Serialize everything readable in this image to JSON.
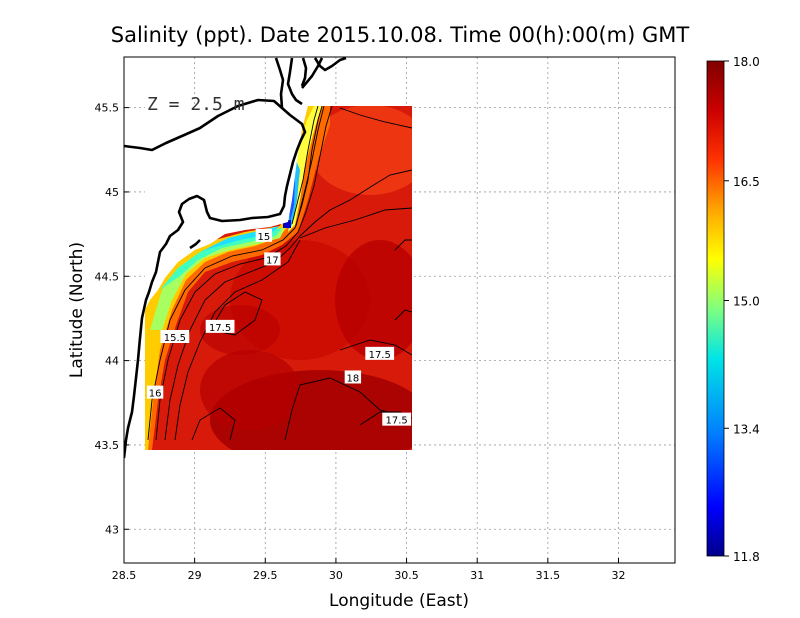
{
  "chart_data": {
    "type": "heatmap",
    "title": "Salinity (ppt). Date 2015.10.08. Time 00(h):00(m) GMT",
    "xlabel": "Longitude (East)",
    "ylabel": "Latitude (North)",
    "depth_label": "Z = 2.5 m",
    "xlim": [
      28.5,
      32.4
    ],
    "ylim": [
      42.8,
      45.8
    ],
    "x_ticks": [
      "28.5",
      "29",
      "29.5",
      "30",
      "30.5",
      "31",
      "31.5",
      "32"
    ],
    "y_ticks": [
      "43",
      "43.5",
      "44",
      "44.5",
      "45",
      "45.5"
    ],
    "grid": true,
    "data_extent": {
      "lon": [
        28.65,
        30.55
      ],
      "lat": [
        43.48,
        45.5
      ]
    },
    "colorbar": {
      "min": 11.8,
      "max": 18.0,
      "ticks": [
        "18.0",
        "16.5",
        "15.0",
        "13.4",
        "11.8"
      ],
      "colors": [
        "#00008b",
        "#0000ff",
        "#0080ff",
        "#00e5e5",
        "#80ff80",
        "#ffff00",
        "#ffa500",
        "#ff3300",
        "#cc0000",
        "#800000"
      ]
    },
    "contour_labels": [
      {
        "text": "15",
        "lon": 29.49,
        "lat": 44.74
      },
      {
        "text": "17",
        "lon": 29.55,
        "lat": 44.6
      },
      {
        "text": "15.5",
        "lon": 28.86,
        "lat": 44.14
      },
      {
        "text": "17.5",
        "lon": 29.18,
        "lat": 44.2
      },
      {
        "text": "17.5",
        "lon": 30.31,
        "lat": 44.04
      },
      {
        "text": "18",
        "lon": 30.12,
        "lat": 43.9
      },
      {
        "text": "16",
        "lon": 28.72,
        "lat": 43.81
      },
      {
        "text": "17.5",
        "lon": 30.43,
        "lat": 43.65
      }
    ]
  }
}
